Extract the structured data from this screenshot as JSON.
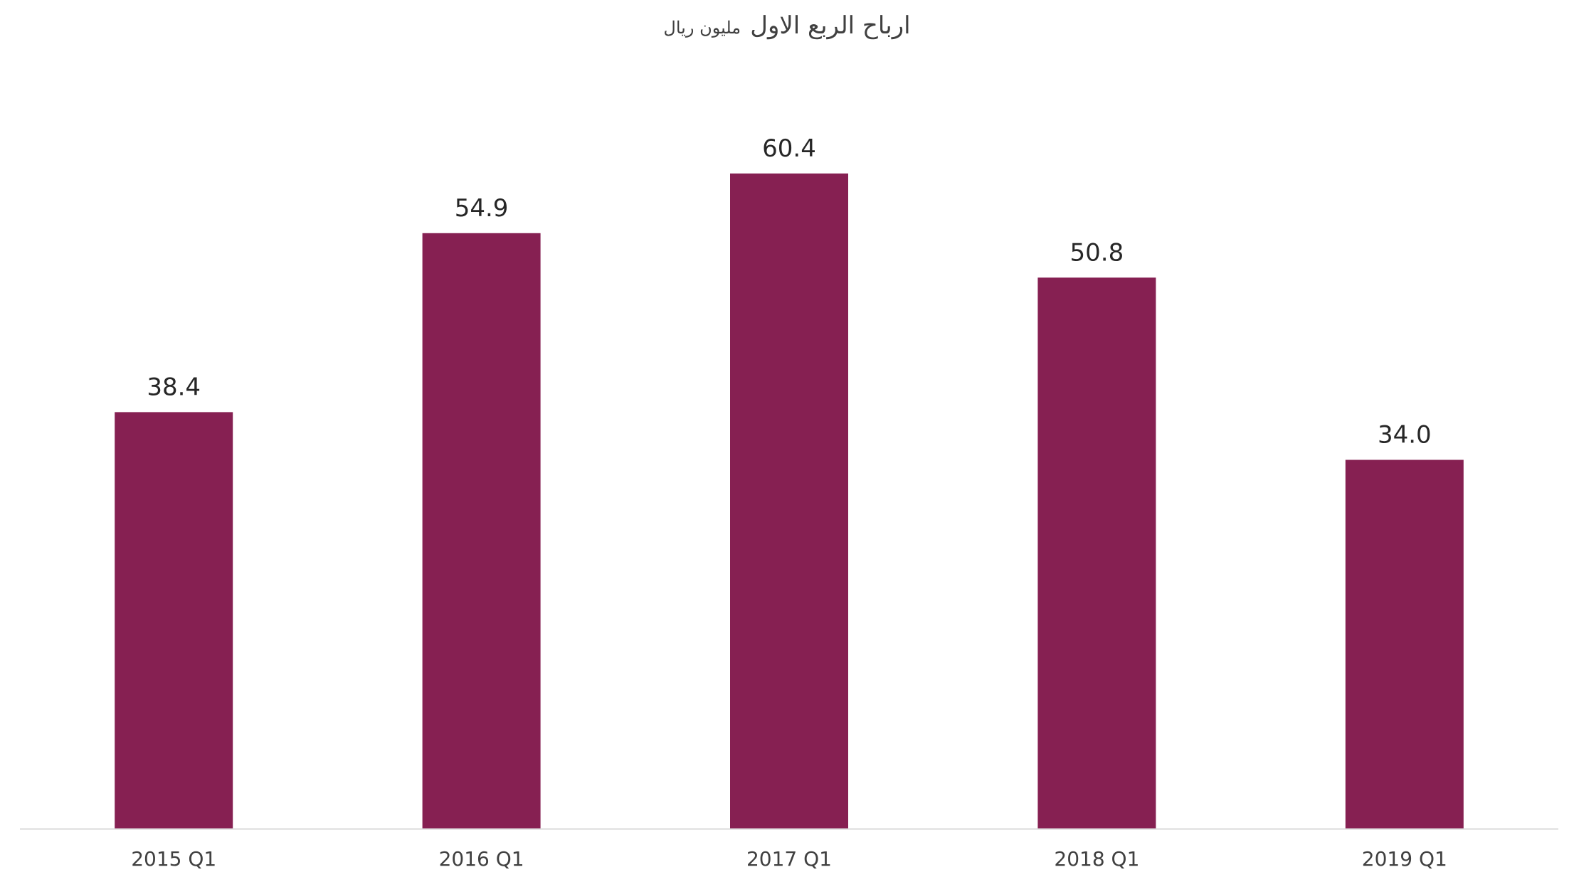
{
  "chart_data": {
    "type": "bar",
    "title": "ارباح الربع الاول",
    "subtitle": "مليون ريال",
    "categories": [
      "2015 Q1",
      "2016 Q1",
      "2017 Q1",
      "2018 Q1",
      "2019 Q1"
    ],
    "values": [
      38.4,
      54.9,
      60.4,
      50.8,
      34.0
    ],
    "data_labels": [
      "38.4",
      "54.9",
      "60.4",
      "50.8",
      "34.0"
    ],
    "ylim": [
      0,
      70
    ],
    "grid": false,
    "legend": "none",
    "colors": {
      "bar": "#862052",
      "axis": "#d9d9d9",
      "text": "#404040"
    }
  }
}
